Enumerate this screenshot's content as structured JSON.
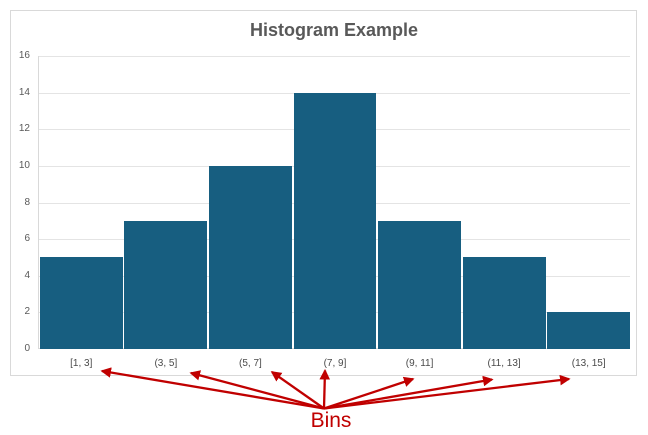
{
  "chart_data": {
    "type": "bar",
    "title": "Histogram Example",
    "categories": [
      "[1, 3]",
      "(3, 5]",
      "(5, 7]",
      "(7, 9]",
      "(9, 11]",
      "(11, 13]",
      "(13, 15]"
    ],
    "values": [
      5,
      7,
      10,
      14,
      7,
      5,
      2
    ],
    "xlabel": "",
    "ylabel": "",
    "ylim": [
      0,
      16
    ],
    "ytick_step": 2,
    "yticks": [
      0,
      2,
      4,
      6,
      8,
      10,
      12,
      14,
      16
    ],
    "grid": true,
    "legend": "none",
    "bar_color": "#175e80",
    "title_color": "#595959",
    "axis_label_color": "#595959"
  },
  "annotation": {
    "label": "Bins",
    "color": "#c00000",
    "arrow_count": 7
  }
}
